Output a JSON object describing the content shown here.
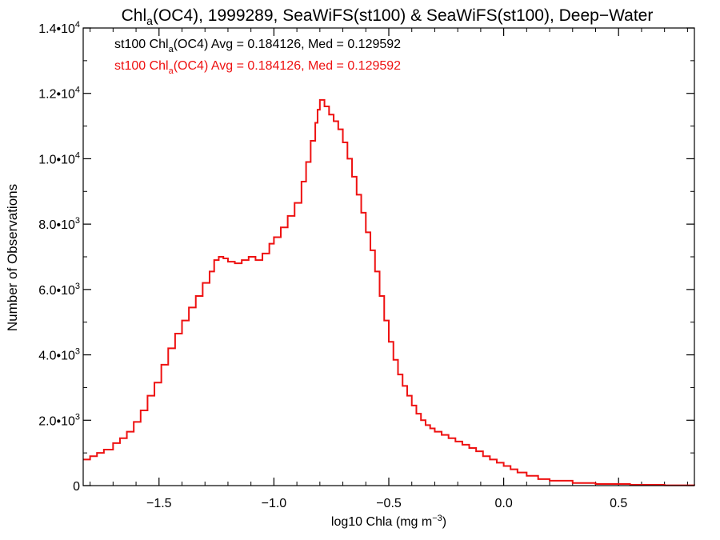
{
  "chart_data": {
    "type": "line",
    "title": {
      "main": "Chl",
      "sub": "a",
      "rest": "(OC4), 1999289, SeaWiFS(st100) & SeaWiFS(st100), Deep−Water"
    },
    "xlabel": {
      "main": "log10 Chla (mg m",
      "sup": "−3",
      "end": ")"
    },
    "ylabel": "Number of Observations",
    "xlim": [
      -1.83,
      0.83
    ],
    "ylim": [
      0,
      14000
    ],
    "x_ticks": [
      {
        "value": -1.5,
        "label": "−1.5"
      },
      {
        "value": -1.0,
        "label": "−1.0"
      },
      {
        "value": -0.5,
        "label": "−0.5"
      },
      {
        "value": 0.0,
        "label": "0.0"
      },
      {
        "value": 0.5,
        "label": "0.5"
      }
    ],
    "y_ticks": [
      {
        "value": 0,
        "mant": "0",
        "exp": ""
      },
      {
        "value": 2000,
        "mant": "2.0•10",
        "exp": "3"
      },
      {
        "value": 4000,
        "mant": "4.0•10",
        "exp": "3"
      },
      {
        "value": 6000,
        "mant": "6.0•10",
        "exp": "3"
      },
      {
        "value": 8000,
        "mant": "8.0•10",
        "exp": "3"
      },
      {
        "value": 10000,
        "mant": "1.0•10",
        "exp": "4"
      },
      {
        "value": 12000,
        "mant": "1.2•10",
        "exp": "4"
      },
      {
        "value": 14000,
        "mant": "1.4•10",
        "exp": "4"
      }
    ],
    "legend": {
      "placement": "top-left",
      "entries": [
        {
          "pre": "st100 Chl",
          "sub": "a",
          "post": "(OC4) Avg = 0.184126, Med = 0.129592",
          "color": "#000000"
        },
        {
          "pre": "st100 Chl",
          "sub": "a",
          "post": "(OC4) Avg = 0.184126, Med = 0.129592",
          "color": "#ee1111"
        }
      ]
    },
    "series": [
      {
        "color": "#ee1111",
        "step": true,
        "points": [
          [
            -1.83,
            800
          ],
          [
            -1.8,
            900
          ],
          [
            -1.77,
            1000
          ],
          [
            -1.74,
            1100
          ],
          [
            -1.7,
            1300
          ],
          [
            -1.67,
            1450
          ],
          [
            -1.64,
            1650
          ],
          [
            -1.61,
            1950
          ],
          [
            -1.58,
            2300
          ],
          [
            -1.55,
            2750
          ],
          [
            -1.52,
            3150
          ],
          [
            -1.49,
            3700
          ],
          [
            -1.46,
            4200
          ],
          [
            -1.43,
            4650
          ],
          [
            -1.4,
            5050
          ],
          [
            -1.37,
            5450
          ],
          [
            -1.34,
            5800
          ],
          [
            -1.31,
            6200
          ],
          [
            -1.28,
            6550
          ],
          [
            -1.26,
            6900
          ],
          [
            -1.24,
            7000
          ],
          [
            -1.22,
            6950
          ],
          [
            -1.2,
            6850
          ],
          [
            -1.17,
            6800
          ],
          [
            -1.14,
            6900
          ],
          [
            -1.11,
            7000
          ],
          [
            -1.08,
            6900
          ],
          [
            -1.05,
            7100
          ],
          [
            -1.02,
            7400
          ],
          [
            -1.0,
            7600
          ],
          [
            -0.97,
            7900
          ],
          [
            -0.94,
            8250
          ],
          [
            -0.91,
            8650
          ],
          [
            -0.88,
            9300
          ],
          [
            -0.86,
            9900
          ],
          [
            -0.84,
            10550
          ],
          [
            -0.82,
            11100
          ],
          [
            -0.81,
            11500
          ],
          [
            -0.8,
            11800
          ],
          [
            -0.78,
            11600
          ],
          [
            -0.76,
            11350
          ],
          [
            -0.74,
            11150
          ],
          [
            -0.72,
            10900
          ],
          [
            -0.7,
            10500
          ],
          [
            -0.68,
            10000
          ],
          [
            -0.66,
            9450
          ],
          [
            -0.64,
            8900
          ],
          [
            -0.62,
            8350
          ],
          [
            -0.6,
            7750
          ],
          [
            -0.58,
            7200
          ],
          [
            -0.56,
            6550
          ],
          [
            -0.54,
            5800
          ],
          [
            -0.52,
            5050
          ],
          [
            -0.5,
            4400
          ],
          [
            -0.48,
            3850
          ],
          [
            -0.46,
            3400
          ],
          [
            -0.44,
            3050
          ],
          [
            -0.42,
            2750
          ],
          [
            -0.4,
            2450
          ],
          [
            -0.38,
            2200
          ],
          [
            -0.36,
            2000
          ],
          [
            -0.34,
            1850
          ],
          [
            -0.32,
            1750
          ],
          [
            -0.3,
            1650
          ],
          [
            -0.27,
            1550
          ],
          [
            -0.24,
            1450
          ],
          [
            -0.21,
            1350
          ],
          [
            -0.18,
            1250
          ],
          [
            -0.15,
            1150
          ],
          [
            -0.12,
            1050
          ],
          [
            -0.09,
            900
          ],
          [
            -0.06,
            800
          ],
          [
            -0.03,
            700
          ],
          [
            0.0,
            600
          ],
          [
            0.03,
            500
          ],
          [
            0.06,
            400
          ],
          [
            0.1,
            300
          ],
          [
            0.15,
            200
          ],
          [
            0.2,
            150
          ],
          [
            0.3,
            80
          ],
          [
            0.4,
            50
          ],
          [
            0.55,
            25
          ],
          [
            0.7,
            10
          ],
          [
            0.83,
            5
          ]
        ]
      }
    ]
  }
}
